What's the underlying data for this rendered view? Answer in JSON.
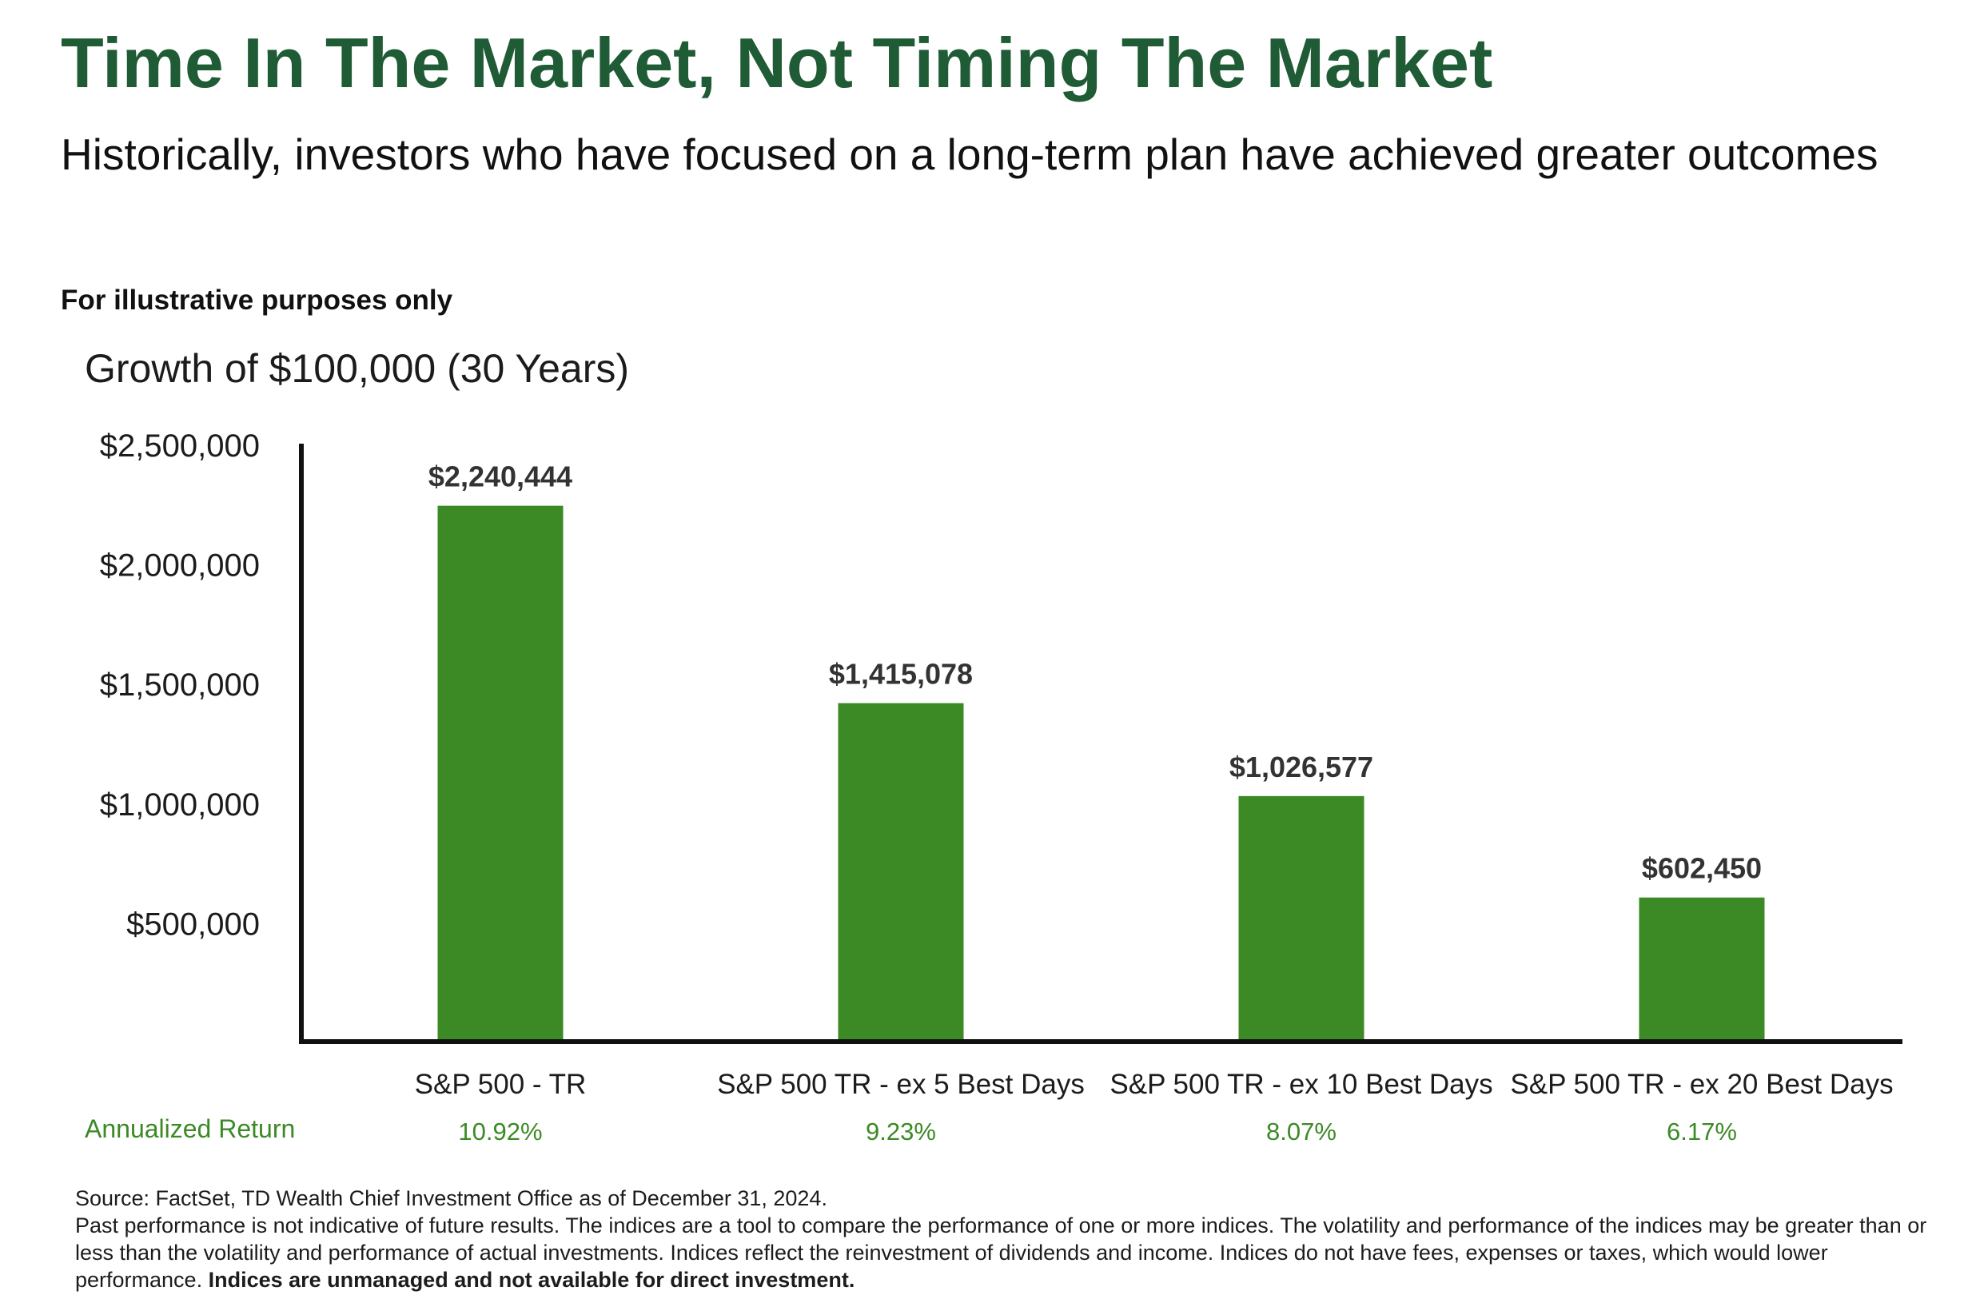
{
  "header": {
    "title": "Time In The Market, Not Timing The Market",
    "subtitle": "Historically, investors who have focused on a long-term plan have achieved greater outcomes",
    "disclaimer": "For illustrative purposes only"
  },
  "chart_data": {
    "type": "bar",
    "title": "Growth of $100,000 (30 Years)",
    "categories": [
      "S&P 500 - TR",
      "S&P 500 TR - ex 5 Best Days",
      "S&P 500 TR - ex 10 Best Days",
      "S&P 500 TR - ex 20 Best Days"
    ],
    "values": [
      2240444,
      1415078,
      1026577,
      602450
    ],
    "value_labels": [
      "$2,240,444",
      "$1,415,078",
      "$1,026,577",
      "$602,450"
    ],
    "annualized_return_label": "Annualized Return",
    "annualized_returns": [
      "10.92%",
      "9.23%",
      "8.07%",
      "6.17%"
    ],
    "y_ticks": [
      500000,
      1000000,
      1500000,
      2000000,
      2500000
    ],
    "y_tick_labels": [
      "$500,000",
      "$1,000,000",
      "$1,500,000",
      "$2,000,000",
      "$2,500,000"
    ],
    "ylim": [
      0,
      2500000
    ],
    "xlabel": "",
    "ylabel": "",
    "grid": false,
    "legend": "none"
  },
  "footnote": {
    "source": "Source: FactSet, TD Wealth Chief Investment Office as of December 31, 2024.",
    "body": "Past performance is not indicative of future results. The indices are a tool to compare the performance of one or more indices. The volatility and performance of the indices may be greater than or less than the volatility and performance of actual investments. Indices reflect the reinvestment of dividends and income. Indices do not have fees, expenses or taxes, which would lower performance.",
    "bold": "Indices are unmanaged and not available for direct investment."
  },
  "colors": {
    "title": "#1f5b35",
    "bar": "#3c8a25",
    "annualized": "#3c8a25",
    "axis": "#111111",
    "text": "#1c1c1c",
    "value_label": "#333333"
  }
}
